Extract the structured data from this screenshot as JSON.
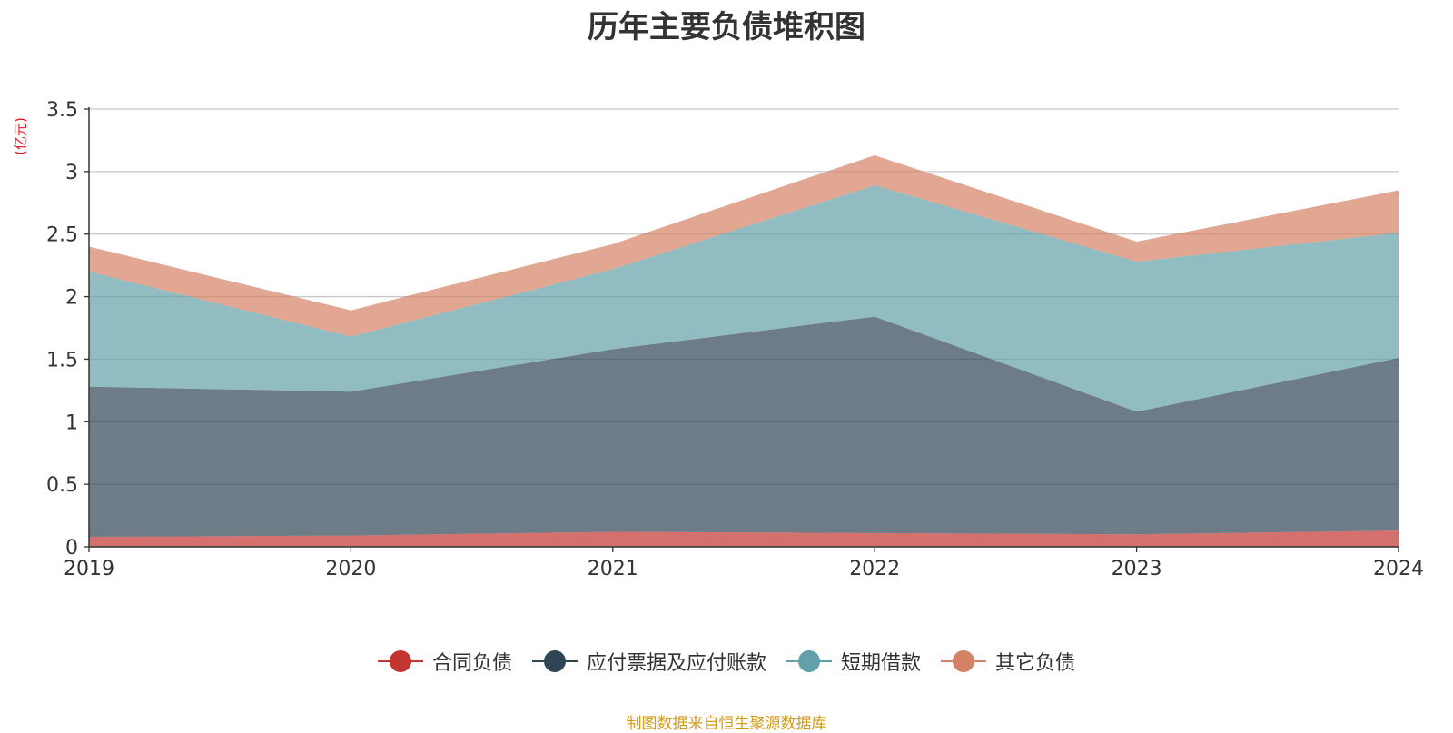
{
  "chart_data": {
    "type": "area",
    "stacked": true,
    "title": "历年主要负债堆积图",
    "unit_label": "(亿元)",
    "categories": [
      "2019",
      "2020",
      "2021",
      "2022",
      "2023",
      "2024"
    ],
    "y_ticks": [
      "0",
      "0.5",
      "1",
      "1.5",
      "2",
      "2.5",
      "3",
      "3.5"
    ],
    "ylim": [
      0,
      3.5
    ],
    "grid": true,
    "legend_position": "bottom",
    "series": [
      {
        "name": "合同负债",
        "color": "#c23531",
        "values": [
          0.08,
          0.09,
          0.12,
          0.11,
          0.1,
          0.13
        ]
      },
      {
        "name": "应付票据及应付账款",
        "color": "#2f4554",
        "values": [
          1.2,
          1.15,
          1.46,
          1.73,
          0.98,
          1.38
        ]
      },
      {
        "name": "短期借款",
        "color": "#61a0a8",
        "values": [
          0.92,
          0.44,
          0.64,
          1.05,
          1.2,
          1.0
        ]
      },
      {
        "name": "其它负债",
        "color": "#d48265",
        "values": [
          0.2,
          0.21,
          0.2,
          0.24,
          0.16,
          0.34
        ]
      }
    ]
  },
  "footer": {
    "source": "制图数据来自恒生聚源数据库"
  }
}
